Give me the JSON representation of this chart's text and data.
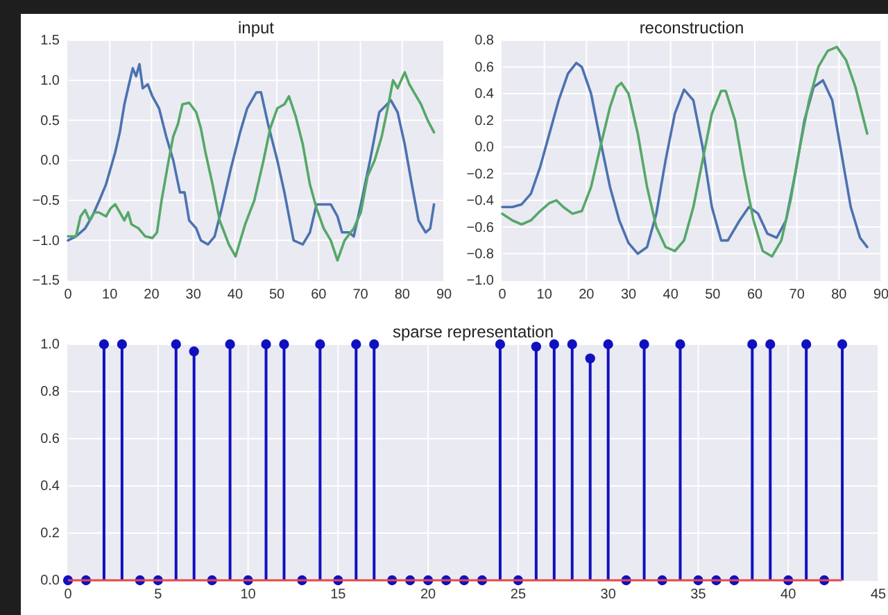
{
  "chart_data": [
    {
      "type": "line",
      "title": "input",
      "xlim": [
        0,
        90
      ],
      "xticks": [
        0,
        10,
        20,
        30,
        40,
        50,
        60,
        70,
        80,
        90
      ],
      "ylim": [
        -1.5,
        1.5
      ],
      "yticks": [
        {
          "value": -1.5,
          "label": "−1.5"
        },
        {
          "value": -1,
          "label": "−1.0"
        },
        {
          "value": -0.5,
          "label": "−0.5"
        },
        {
          "value": 0,
          "label": "0.0"
        },
        {
          "value": 0.5,
          "label": "0.5"
        },
        {
          "value": 1,
          "label": "1.0"
        },
        {
          "value": 1.5,
          "label": "1.5"
        }
      ],
      "grid": true,
      "series": [
        {
          "color": "#4c72b0",
          "x": [
            0,
            1.9,
            4.1,
            5.8,
            7.5,
            9.1,
            11.3,
            12.4,
            13.5,
            14.6,
            15.5,
            16.3,
            17.1,
            17.9,
            19.1,
            20.2,
            21.8,
            23.5,
            25.2,
            26.8,
            27.9,
            29,
            30.7,
            31.8,
            33.5,
            35.1,
            36.8,
            39,
            41.2,
            42.9,
            45.1,
            46.2,
            47.9,
            50.1,
            51.8,
            52.9,
            54,
            56.2,
            57.9,
            59.5,
            61.2,
            62.9,
            64.5,
            65.6,
            67.3,
            68.4,
            70.1,
            72.3,
            74.5,
            77.3,
            78.9,
            80.6,
            82.3,
            83.9,
            85.6,
            86.7,
            87.6
          ],
          "values": [
            -1,
            -0.95,
            -0.85,
            -0.7,
            -0.5,
            -0.3,
            0.1,
            0.35,
            0.7,
            0.95,
            1.15,
            1.05,
            1.2,
            0.9,
            0.95,
            0.8,
            0.65,
            0.3,
            0,
            -0.4,
            -0.4,
            -0.75,
            -0.85,
            -1,
            -1.05,
            -0.95,
            -0.6,
            -0.1,
            0.35,
            0.65,
            0.85,
            0.85,
            0.45,
            0,
            -0.4,
            -0.7,
            -1,
            -1.05,
            -0.9,
            -0.55,
            -0.55,
            -0.55,
            -0.7,
            -0.9,
            -0.9,
            -0.95,
            -0.55,
            0,
            0.6,
            0.75,
            0.6,
            0.2,
            -0.3,
            -0.75,
            -0.9,
            -0.85,
            -0.55
          ]
        },
        {
          "color": "#55a868",
          "x": [
            0,
            1.9,
            3,
            4.1,
            5.2,
            6.3,
            7.4,
            9.1,
            10.2,
            11.3,
            12.4,
            13.5,
            14.4,
            15.2,
            16.9,
            18.5,
            20.2,
            21.3,
            22.4,
            24.1,
            25.2,
            26.3,
            27.4,
            29,
            30.7,
            31.8,
            32.9,
            34.6,
            36.3,
            38.5,
            40.1,
            42.4,
            44.6,
            46.8,
            48.4,
            50.1,
            51.8,
            52.9,
            54.5,
            56.2,
            57.9,
            59.5,
            61.2,
            62.9,
            64.5,
            66.2,
            68.4,
            70.1,
            71.7,
            73.4,
            75.1,
            76.7,
            77.8,
            78.9,
            80.6,
            81.7,
            82.8,
            84.5,
            86.1,
            87.6
          ],
          "values": [
            -0.95,
            -0.95,
            -0.7,
            -0.62,
            -0.75,
            -0.65,
            -0.65,
            -0.7,
            -0.6,
            -0.55,
            -0.65,
            -0.75,
            -0.65,
            -0.8,
            -0.85,
            -0.95,
            -0.97,
            -0.9,
            -0.5,
            0,
            0.3,
            0.45,
            0.7,
            0.72,
            0.6,
            0.4,
            0.1,
            -0.3,
            -0.75,
            -1.05,
            -1.2,
            -0.8,
            -0.5,
            0,
            0.4,
            0.65,
            0.7,
            0.8,
            0.55,
            0.2,
            -0.3,
            -0.6,
            -0.85,
            -1,
            -1.25,
            -1,
            -0.85,
            -0.65,
            -0.2,
            0,
            0.3,
            0.7,
            1,
            0.9,
            1.1,
            0.95,
            0.85,
            0.7,
            0.5,
            0.35
          ]
        }
      ]
    },
    {
      "type": "line",
      "title": "reconstruction",
      "xlim": [
        0,
        90
      ],
      "xticks": [
        0,
        10,
        20,
        30,
        40,
        50,
        60,
        70,
        80,
        90
      ],
      "ylim": [
        -1,
        0.8
      ],
      "yticks": [
        {
          "value": -1,
          "label": "−1.0"
        },
        {
          "value": -0.8,
          "label": "−0.8"
        },
        {
          "value": -0.6,
          "label": "−0.6"
        },
        {
          "value": -0.4,
          "label": "−0.4"
        },
        {
          "value": -0.2,
          "label": "−0.2"
        },
        {
          "value": 0,
          "label": "0.0"
        },
        {
          "value": 0.2,
          "label": "0.2"
        },
        {
          "value": 0.4,
          "label": "0.4"
        },
        {
          "value": 0.6,
          "label": "0.6"
        },
        {
          "value": 0.8,
          "label": "0.8"
        }
      ],
      "grid": true,
      "series": [
        {
          "color": "#4c72b0",
          "x": [
            0,
            2.4,
            4.6,
            6.8,
            9,
            11.2,
            13.4,
            15.6,
            17.6,
            18.9,
            21.1,
            23.3,
            25.6,
            27.8,
            30,
            32.2,
            34.4,
            36.6,
            38.8,
            41,
            43.2,
            45.4,
            47.6,
            49.8,
            52,
            53.6,
            56.4,
            58.6,
            60.8,
            63,
            65.2,
            67.4,
            69.6,
            71.8,
            74,
            76.2,
            78.4,
            80.6,
            82.8,
            85,
            86.7
          ],
          "values": [
            -0.45,
            -0.45,
            -0.43,
            -0.35,
            -0.15,
            0.1,
            0.35,
            0.55,
            0.63,
            0.6,
            0.4,
            0.05,
            -0.3,
            -0.55,
            -0.72,
            -0.8,
            -0.75,
            -0.5,
            -0.1,
            0.25,
            0.43,
            0.35,
            0,
            -0.45,
            -0.7,
            -0.7,
            -0.55,
            -0.45,
            -0.5,
            -0.65,
            -0.68,
            -0.55,
            -0.2,
            0.2,
            0.45,
            0.5,
            0.35,
            -0.05,
            -0.45,
            -0.68,
            -0.75
          ]
        },
        {
          "color": "#55a868",
          "x": [
            0,
            2.4,
            4.6,
            6.8,
            9,
            11.2,
            12.9,
            14.5,
            16.7,
            18.9,
            21.1,
            23.3,
            25.6,
            27.2,
            28.3,
            30,
            32.2,
            34.4,
            36.6,
            38.8,
            41,
            43.2,
            45.4,
            47.6,
            49.8,
            52,
            53.1,
            55.3,
            57.5,
            59.7,
            61.9,
            64.1,
            66.3,
            68.5,
            70.7,
            72.9,
            75.1,
            77.3,
            79.5,
            81.7,
            83.9,
            86.7
          ],
          "values": [
            -0.5,
            -0.55,
            -0.58,
            -0.55,
            -0.48,
            -0.42,
            -0.4,
            -0.45,
            -0.5,
            -0.48,
            -0.3,
            0,
            0.3,
            0.45,
            0.48,
            0.4,
            0.1,
            -0.3,
            -0.6,
            -0.75,
            -0.78,
            -0.7,
            -0.45,
            -0.1,
            0.25,
            0.42,
            0.42,
            0.2,
            -0.2,
            -0.55,
            -0.78,
            -0.82,
            -0.7,
            -0.4,
            0,
            0.35,
            0.6,
            0.72,
            0.75,
            0.65,
            0.45,
            0.1
          ]
        }
      ]
    },
    {
      "type": "lollipop",
      "title": "sparse representation",
      "xlim": [
        0,
        45
      ],
      "xticks": [
        0,
        5,
        10,
        15,
        20,
        25,
        30,
        35,
        40,
        45
      ],
      "ylim": [
        0,
        1
      ],
      "yticks": [
        {
          "value": 0,
          "label": "0.0"
        },
        {
          "value": 0.2,
          "label": "0.2"
        },
        {
          "value": 0.4,
          "label": "0.4"
        },
        {
          "value": 0.6,
          "label": "0.6"
        },
        {
          "value": 0.8,
          "label": "0.8"
        },
        {
          "value": 1,
          "label": "1.0"
        }
      ],
      "grid": true,
      "marker": "circle",
      "series": [
        {
          "color": "#1010c0",
          "x": [
            0,
            1,
            2,
            3,
            4,
            5,
            6,
            7,
            8,
            9,
            10,
            11,
            12,
            13,
            14,
            15,
            16,
            17,
            18,
            19,
            20,
            21,
            22,
            23,
            24,
            25,
            26,
            27,
            28,
            29,
            30,
            31,
            32,
            33,
            34,
            35,
            36,
            37,
            38,
            39,
            40,
            41,
            42,
            43
          ],
          "values": [
            0,
            0,
            1,
            1,
            0,
            0,
            1,
            0.97,
            0,
            1,
            0,
            1,
            1,
            0,
            1,
            0,
            1,
            1,
            0,
            0,
            0,
            0,
            0,
            0,
            1,
            0,
            0.99,
            1,
            1,
            0.94,
            1,
            0,
            1,
            0,
            1,
            0,
            0,
            0,
            1,
            1,
            0,
            1,
            0,
            1
          ]
        }
      ]
    }
  ]
}
